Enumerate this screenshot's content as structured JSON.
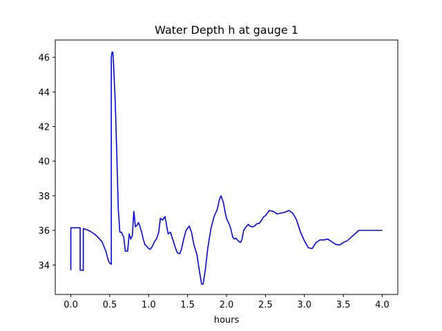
{
  "chart_data": {
    "type": "line",
    "title": "Water Depth h at gauge 1",
    "xlabel": "hours",
    "ylabel": "",
    "xlim": [
      -0.2,
      4.2
    ],
    "ylim": [
      32.3,
      47.0
    ],
    "xticks": [
      0.0,
      0.5,
      1.0,
      1.5,
      2.0,
      2.5,
      3.0,
      3.5,
      4.0
    ],
    "xtick_labels": [
      "0.0",
      "0.5",
      "1.0",
      "1.5",
      "2.0",
      "2.5",
      "3.0",
      "3.5",
      "4.0"
    ],
    "yticks": [
      34,
      36,
      38,
      40,
      42,
      44,
      46
    ],
    "ytick_labels": [
      "34",
      "36",
      "38",
      "40",
      "42",
      "44",
      "46"
    ],
    "grid": false,
    "series": [
      {
        "color": "#0000ff",
        "x": [
          0.0,
          0.0,
          0.12,
          0.12,
          0.16,
          0.16,
          0.2,
          0.25,
          0.3,
          0.35,
          0.4,
          0.45,
          0.48,
          0.5,
          0.52,
          0.52,
          0.53,
          0.54,
          0.55,
          0.57,
          0.59,
          0.61,
          0.63,
          0.65,
          0.68,
          0.7,
          0.73,
          0.75,
          0.77,
          0.79,
          0.81,
          0.83,
          0.85,
          0.87,
          0.89,
          0.91,
          0.93,
          0.95,
          0.97,
          1.0,
          1.02,
          1.05,
          1.08,
          1.1,
          1.13,
          1.15,
          1.18,
          1.21,
          1.25,
          1.28,
          1.3,
          1.33,
          1.35,
          1.37,
          1.4,
          1.42,
          1.45,
          1.48,
          1.52,
          1.55,
          1.58,
          1.62,
          1.65,
          1.68,
          1.7,
          1.73,
          1.76,
          1.8,
          1.84,
          1.88,
          1.91,
          1.93,
          1.96,
          1.98,
          2.0,
          2.02,
          2.04,
          2.06,
          2.08,
          2.1,
          2.12,
          2.15,
          2.18,
          2.2,
          2.22,
          2.25,
          2.28,
          2.3,
          2.33,
          2.36,
          2.38,
          2.4,
          2.42,
          2.45,
          2.48,
          2.5,
          2.55,
          2.6,
          2.65,
          2.7,
          2.75,
          2.8,
          2.85,
          2.9,
          2.95,
          3.0,
          3.05,
          3.1,
          3.15,
          3.2,
          3.25,
          3.3,
          3.35,
          3.4,
          3.45,
          3.5,
          3.55,
          3.6,
          3.65,
          3.7,
          3.75,
          3.8,
          3.85,
          3.9,
          3.95,
          4.0
        ],
        "y": [
          33.7,
          36.15,
          36.15,
          33.7,
          33.7,
          36.1,
          36.05,
          35.95,
          35.8,
          35.6,
          35.35,
          34.8,
          34.3,
          34.1,
          34.05,
          46.0,
          46.3,
          46.3,
          45.5,
          43.5,
          40.5,
          37.2,
          35.9,
          35.9,
          35.6,
          34.8,
          34.8,
          35.8,
          35.5,
          35.7,
          37.1,
          36.2,
          36.3,
          36.45,
          36.2,
          35.9,
          35.5,
          35.2,
          35.1,
          34.95,
          34.9,
          35.1,
          35.4,
          35.5,
          35.9,
          36.7,
          36.6,
          36.8,
          35.8,
          35.9,
          35.6,
          35.2,
          34.9,
          34.7,
          34.65,
          34.9,
          35.5,
          36.0,
          36.25,
          35.9,
          35.2,
          34.6,
          33.7,
          32.9,
          32.9,
          33.8,
          35.0,
          36.1,
          36.8,
          37.2,
          37.8,
          38.0,
          37.6,
          37.1,
          36.7,
          36.5,
          36.3,
          36.0,
          35.6,
          35.5,
          35.55,
          35.4,
          35.3,
          35.5,
          36.0,
          36.2,
          36.35,
          36.25,
          36.2,
          36.25,
          36.35,
          36.4,
          36.4,
          36.6,
          36.8,
          36.85,
          37.15,
          37.1,
          36.95,
          37.0,
          37.05,
          37.15,
          37.0,
          36.6,
          35.9,
          35.4,
          35.0,
          34.95,
          35.3,
          35.45,
          35.45,
          35.5,
          35.35,
          35.2,
          35.15,
          35.3,
          35.4,
          35.6,
          35.8,
          36.0,
          36.0,
          36.0,
          36.0,
          36.0,
          36.0,
          36.0
        ]
      }
    ]
  }
}
